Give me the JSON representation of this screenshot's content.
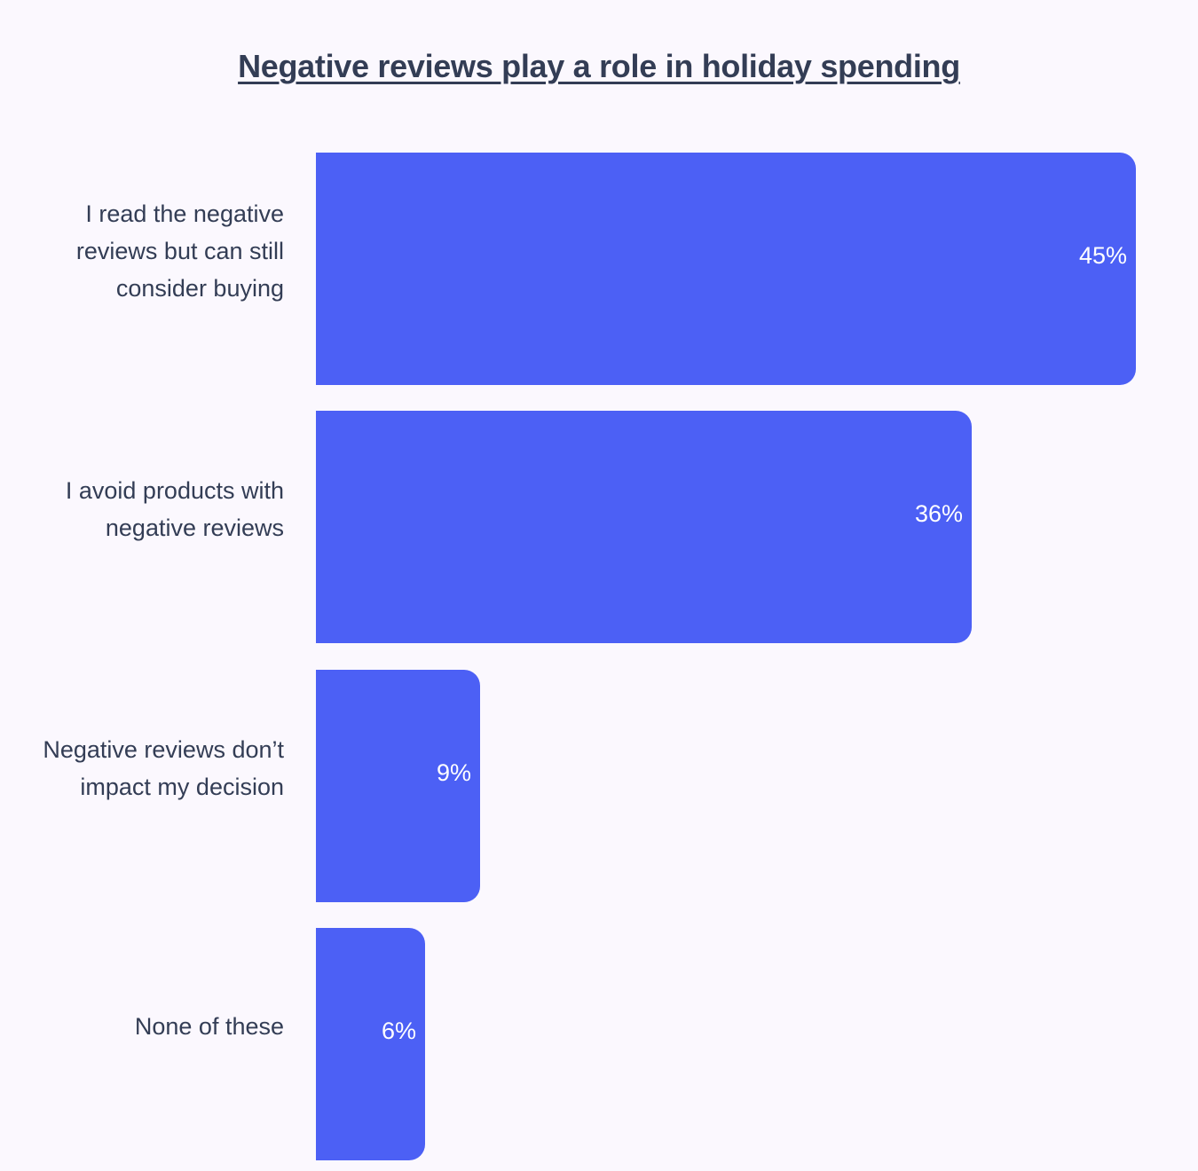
{
  "chart_data": {
    "type": "bar",
    "orientation": "horizontal",
    "title": "Negative reviews play a role in holiday spending",
    "categories": [
      "I read the negative\nreviews but can still\nconsider buying",
      "I avoid products with\nnegative reviews",
      "Negative reviews don’t\nimpact my decision",
      "None of these"
    ],
    "values": [
      45,
      36,
      9,
      6
    ],
    "value_labels": [
      "45%",
      "36%",
      "9%",
      "6%"
    ],
    "xlim": [
      0,
      45
    ],
    "grid": false,
    "bar_color": "#4c60f5"
  }
}
